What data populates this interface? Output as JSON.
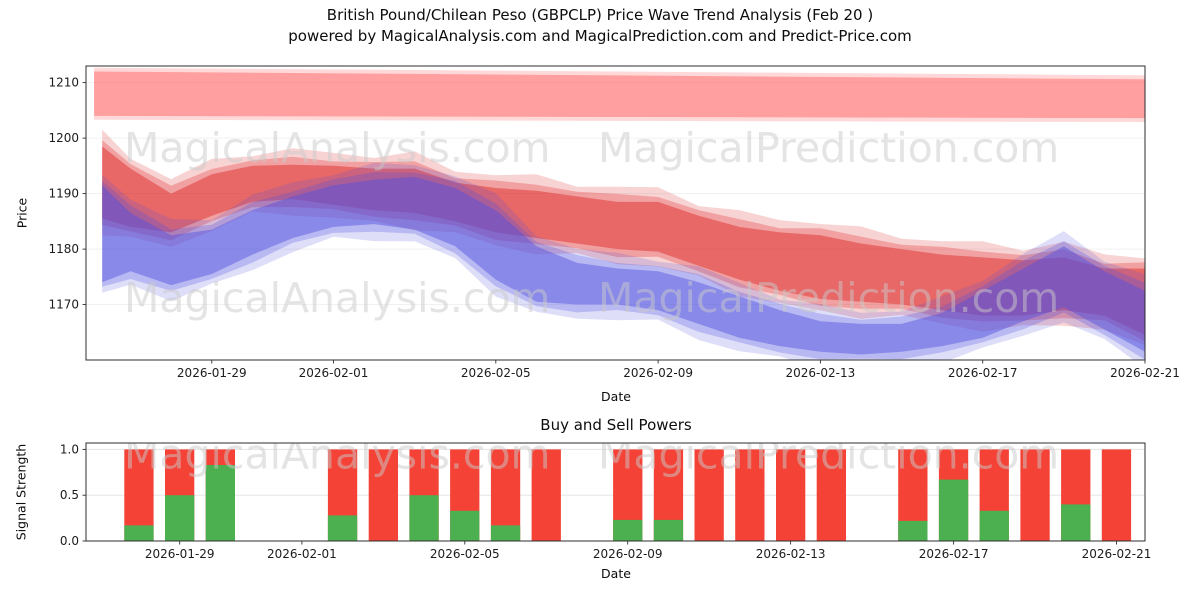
{
  "title": {
    "line1": "British Pound/Chilean Peso (GBPCLP) Price Wave Trend Analysis (Feb 20 )",
    "line2": "powered by MagicalAnalysis.com and MagicalPrediction.com and Predict-Price.com"
  },
  "watermarks": {
    "left": "MagicalAnalysis.com",
    "right": "MagicalPrediction.com"
  },
  "chart_data": [
    {
      "name": "price-wave-chart",
      "type": "area",
      "title": "",
      "xlabel": "Date",
      "ylabel": "Price",
      "x_unit": "days since 2026-01-26",
      "xlim": [
        -0.1,
        26.0
      ],
      "ylim": [
        1160,
        1213
      ],
      "grid": true,
      "legend": "none",
      "yticks": [
        {
          "v": 1170,
          "label": "1170"
        },
        {
          "v": 1180,
          "label": "1180"
        },
        {
          "v": 1190,
          "label": "1190"
        },
        {
          "v": 1200,
          "label": "1200"
        },
        {
          "v": 1210,
          "label": "1210"
        }
      ],
      "xticks": [
        {
          "d": 3,
          "label": "2026-01-29"
        },
        {
          "d": 6,
          "label": "2026-02-01"
        },
        {
          "d": 10,
          "label": "2026-02-05"
        },
        {
          "d": 14,
          "label": "2026-02-09"
        },
        {
          "d": 18,
          "label": "2026-02-13"
        },
        {
          "d": 22,
          "label": "2026-02-17"
        },
        {
          "d": 26,
          "label": "2026-02-21"
        }
      ],
      "bands": [
        {
          "name": "upper-resistance-zone",
          "style": "zone",
          "color": "#ff6666",
          "alpha": 0.5,
          "points": [
            [
              0.1,
              1204.0,
              1212.0
            ],
            [
              13.0,
              1203.8,
              1211.3
            ],
            [
              26.1,
              1203.6,
              1210.6
            ]
          ]
        },
        {
          "name": "bearish-wave-band",
          "style": "band",
          "color": "#e03030",
          "alpha": 0.5,
          "points": [
            [
              0.3,
              1185.5,
              1198.5
            ],
            [
              1,
              1184,
              1194.5
            ],
            [
              2,
              1183,
              1190
            ],
            [
              3,
              1186,
              1193.5
            ],
            [
              4,
              1188.5,
              1195
            ],
            [
              5,
              1189,
              1195.2
            ],
            [
              6,
              1188,
              1195
            ],
            [
              7,
              1187,
              1194.5
            ],
            [
              8,
              1186.5,
              1194.5
            ],
            [
              9,
              1185,
              1192
            ],
            [
              10,
              1183,
              1191
            ],
            [
              11,
              1182,
              1190.5
            ],
            [
              12,
              1181,
              1189.5
            ],
            [
              13,
              1180,
              1188.5
            ],
            [
              14,
              1179.5,
              1188.5
            ],
            [
              15,
              1177,
              1186
            ],
            [
              16,
              1174.5,
              1184
            ],
            [
              17,
              1172.5,
              1183
            ],
            [
              18,
              1171,
              1182.5
            ],
            [
              19,
              1170.5,
              1181
            ],
            [
              20,
              1170,
              1180
            ],
            [
              21,
              1169,
              1179
            ],
            [
              22,
              1168,
              1178.5
            ],
            [
              23,
              1168,
              1178
            ],
            [
              24,
              1169,
              1178.5
            ],
            [
              25,
              1168,
              1176.5
            ],
            [
              26,
              1164.5,
              1176.5
            ]
          ]
        },
        {
          "name": "bullish-wave-band",
          "style": "band",
          "color": "#5050e0",
          "alpha": 0.45,
          "points": [
            [
              0.3,
              1174,
              1191.5
            ],
            [
              1,
              1176,
              1186.5
            ],
            [
              2,
              1173.5,
              1182.5
            ],
            [
              3,
              1175.5,
              1183.5
            ],
            [
              4,
              1179,
              1187
            ],
            [
              5,
              1182,
              1189.5
            ],
            [
              6,
              1184,
              1191.5
            ],
            [
              7,
              1184.5,
              1192.5
            ],
            [
              8,
              1183.5,
              1193
            ],
            [
              9,
              1180.5,
              1191
            ],
            [
              10,
              1174.5,
              1187
            ],
            [
              11,
              1170.5,
              1180.5
            ],
            [
              12,
              1170,
              1177.5
            ],
            [
              13,
              1170,
              1176.5
            ],
            [
              14,
              1169,
              1176
            ],
            [
              15,
              1166.5,
              1174
            ],
            [
              16,
              1164,
              1171.5
            ],
            [
              17,
              1162.5,
              1169
            ],
            [
              18,
              1161.5,
              1167
            ],
            [
              19,
              1161,
              1166.5
            ],
            [
              20,
              1161.5,
              1166.5
            ],
            [
              21,
              1162.5,
              1168.5
            ],
            [
              22,
              1164,
              1172.5
            ],
            [
              23,
              1167,
              1176.5
            ],
            [
              24,
              1169.5,
              1180.5
            ],
            [
              25,
              1165.5,
              1176
            ],
            [
              26,
              1161.5,
              1172.5
            ]
          ]
        }
      ]
    },
    {
      "name": "buy-sell-powers-chart",
      "type": "bar",
      "title": "Buy and Sell Powers",
      "xlabel": "Date",
      "ylabel": "Signal Strength",
      "x_unit": "days since 2026-01-26",
      "xlim": [
        0.7,
        26.7
      ],
      "ylim": [
        0,
        1.07
      ],
      "grid": true,
      "bar_width_days": 0.72,
      "colors": {
        "sell": "#f44336",
        "buy": "#4caf50"
      },
      "yticks": [
        {
          "v": 0.0,
          "label": "0.0"
        },
        {
          "v": 0.5,
          "label": "0.5"
        },
        {
          "v": 1.0,
          "label": "1.0"
        }
      ],
      "xticks": [
        {
          "d": 3,
          "label": "2026-01-29"
        },
        {
          "d": 6,
          "label": "2026-02-01"
        },
        {
          "d": 10,
          "label": "2026-02-05"
        },
        {
          "d": 14,
          "label": "2026-02-09"
        },
        {
          "d": 18,
          "label": "2026-02-13"
        },
        {
          "d": 22,
          "label": "2026-02-17"
        },
        {
          "d": 26,
          "label": "2026-02-21"
        }
      ],
      "bars": [
        {
          "date": "2026-01-28",
          "day": 2,
          "sell": 1.0,
          "buy": 0.17
        },
        {
          "date": "2026-01-29",
          "day": 3,
          "sell": 1.0,
          "buy": 0.5
        },
        {
          "date": "2026-01-30",
          "day": 4,
          "sell": 1.0,
          "buy": 0.83
        },
        {
          "date": "2026-02-02",
          "day": 7,
          "sell": 1.0,
          "buy": 0.28
        },
        {
          "date": "2026-02-03",
          "day": 8,
          "sell": 1.0,
          "buy": 0.0
        },
        {
          "date": "2026-02-04",
          "day": 9,
          "sell": 1.0,
          "buy": 0.5
        },
        {
          "date": "2026-02-05",
          "day": 10,
          "sell": 1.0,
          "buy": 0.33
        },
        {
          "date": "2026-02-06",
          "day": 11,
          "sell": 1.0,
          "buy": 0.17
        },
        {
          "date": "2026-02-07",
          "day": 12,
          "sell": 1.0,
          "buy": 0.0
        },
        {
          "date": "2026-02-09",
          "day": 14,
          "sell": 1.0,
          "buy": 0.23
        },
        {
          "date": "2026-02-10",
          "day": 15,
          "sell": 1.0,
          "buy": 0.23
        },
        {
          "date": "2026-02-11",
          "day": 16,
          "sell": 1.0,
          "buy": 0.0
        },
        {
          "date": "2026-02-12",
          "day": 17,
          "sell": 1.0,
          "buy": 0.0
        },
        {
          "date": "2026-02-13",
          "day": 18,
          "sell": 1.0,
          "buy": 0.0
        },
        {
          "date": "2026-02-14",
          "day": 19,
          "sell": 1.0,
          "buy": 0.0
        },
        {
          "date": "2026-02-16",
          "day": 21,
          "sell": 1.0,
          "buy": 0.22
        },
        {
          "date": "2026-02-17",
          "day": 22,
          "sell": 1.0,
          "buy": 0.67
        },
        {
          "date": "2026-02-18",
          "day": 23,
          "sell": 1.0,
          "buy": 0.33
        },
        {
          "date": "2026-02-19",
          "day": 24,
          "sell": 1.0,
          "buy": 0.0
        },
        {
          "date": "2026-02-20",
          "day": 25,
          "sell": 1.0,
          "buy": 0.4
        },
        {
          "date": "2026-02-21",
          "day": 26,
          "sell": 1.0,
          "buy": 0.0
        }
      ]
    }
  ]
}
